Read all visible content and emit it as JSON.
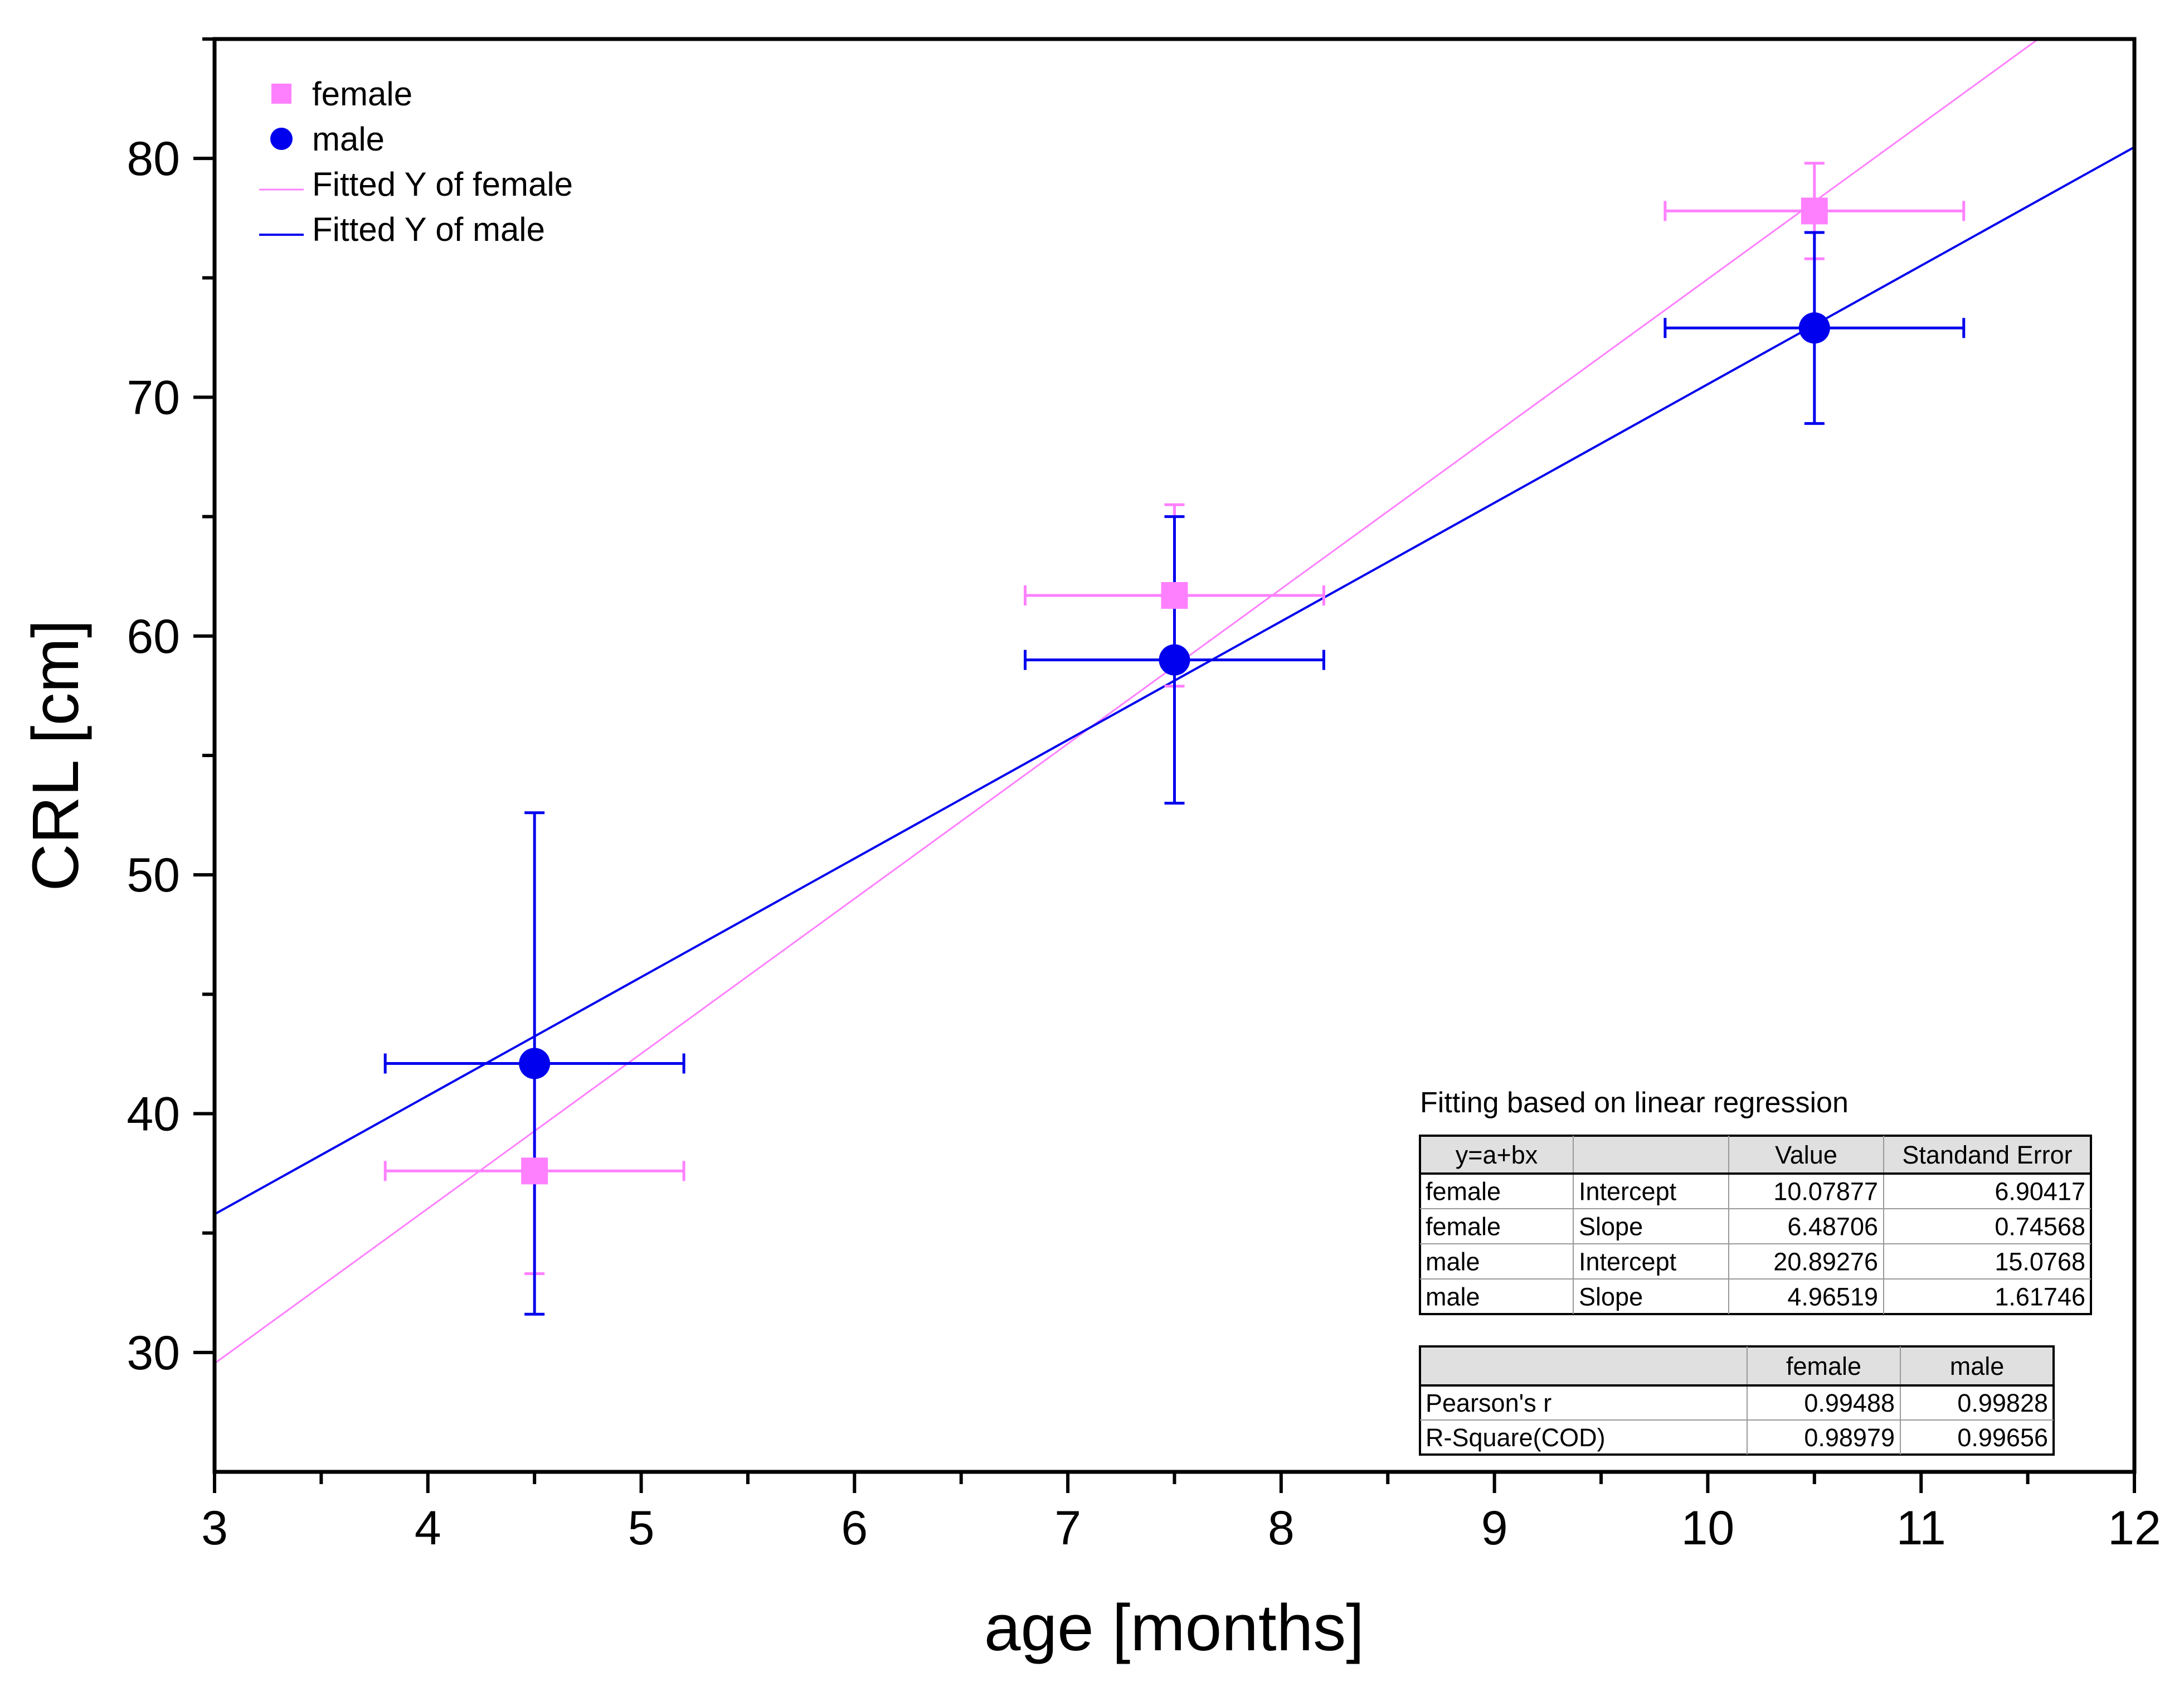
{
  "chart_data": {
    "type": "scatter",
    "xlabel": "age [months]",
    "ylabel": "CRL [cm]",
    "xlim": [
      3,
      12
    ],
    "ylim": [
      25,
      85
    ],
    "xticks": [
      "3",
      "4",
      "5",
      "6",
      "7",
      "8",
      "9",
      "10",
      "11",
      "12"
    ],
    "yticks": [
      "30",
      "40",
      "50",
      "60",
      "70",
      "80"
    ],
    "grid": false,
    "legend_position": "top-left",
    "series": [
      {
        "name": "female",
        "marker": "square",
        "color": "#ff80ff",
        "x": [
          4.5,
          7.5,
          10.5
        ],
        "y": [
          37.6,
          61.7,
          77.8
        ],
        "x_err": [
          0.7,
          0.7,
          0.7
        ],
        "y_err": [
          4.3,
          3.8,
          2.0
        ]
      },
      {
        "name": "male",
        "marker": "circle",
        "color": "#0000ee",
        "x": [
          4.5,
          7.5,
          10.5
        ],
        "y": [
          42.1,
          59.0,
          72.9
        ],
        "x_err": [
          0.7,
          0.7,
          0.7
        ],
        "y_err": [
          10.5,
          6.0,
          4.0
        ]
      }
    ],
    "fits": [
      {
        "name": "Fitted Y of female",
        "color": "#ff80ff",
        "intercept": 10.07877,
        "slope": 6.48706
      },
      {
        "name": "Fitted Y of male",
        "color": "#0000ee",
        "intercept": 20.89276,
        "slope": 4.96519
      }
    ],
    "annotation": {
      "caption": "Fitting based on linear regression",
      "params_table": {
        "header": [
          "y=a+bx",
          "",
          "Value",
          "Standand Error"
        ],
        "rows": [
          [
            "female",
            "Intercept",
            "10.07877",
            "6.90417"
          ],
          [
            "female",
            "Slope",
            "6.48706",
            "0.74568"
          ],
          [
            "male",
            "Intercept",
            "20.89276",
            "15.0768"
          ],
          [
            "male",
            "Slope",
            "4.96519",
            "1.61746"
          ]
        ]
      },
      "stats_table": {
        "header": [
          "",
          "female",
          "male"
        ],
        "rows": [
          [
            "Pearson's r",
            "0.99488",
            "0.99828"
          ],
          [
            "R-Square(COD)",
            "0.98979",
            "0.99656"
          ]
        ]
      }
    }
  }
}
